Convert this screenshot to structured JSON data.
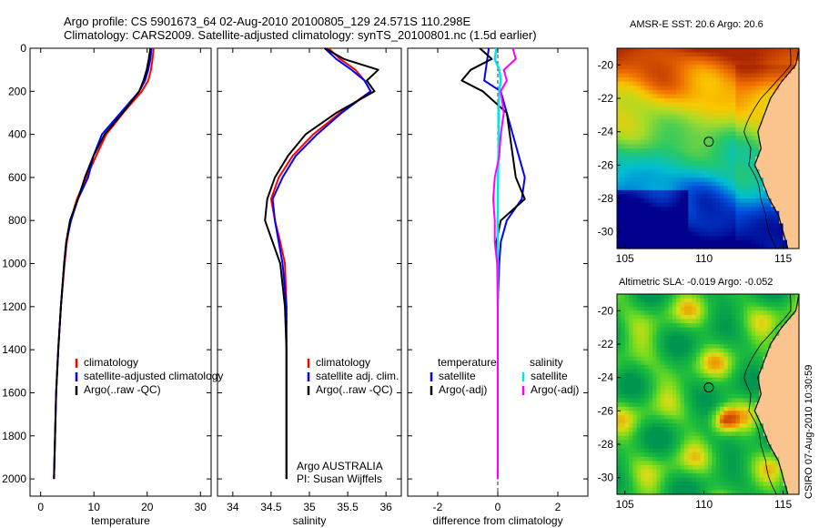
{
  "header": {
    "line1": "Argo profile: CS 5901673_64 02-Aug-2010 20100805_129 24.571S 110.298E",
    "line2": "Climatology: CARS2009. Satellite-adjusted climatology: synTS_20100801.nc (1.5d earlier)"
  },
  "side_label": "CSIRO 07-Aug-2010 10:30:59",
  "colors": {
    "clim": "#ff0000",
    "sat": "#0000ff",
    "argo": "#000000",
    "sal_sat": "#00e5e5",
    "sal_argo": "#ff00ff",
    "land": "#fbc48f",
    "coast": "#000000"
  },
  "chart_data": [
    {
      "type": "line",
      "id": "temperature",
      "xlabel": "temperature",
      "ylabel": "",
      "xlim": [
        -2,
        32
      ],
      "ylim": [
        2080,
        0
      ],
      "xticks": [
        0,
        10,
        20,
        30
      ],
      "yticks": [
        0,
        200,
        400,
        600,
        800,
        1000,
        1200,
        1400,
        1600,
        1800,
        2000
      ],
      "legend": [
        "climatology",
        "satellite-adjusted climatology",
        "Argo(..raw -QC)"
      ],
      "series": [
        {
          "name": "climatology",
          "color": "#ff0000",
          "depth": [
            0,
            50,
            100,
            150,
            200,
            300,
            400,
            500,
            600,
            700,
            800,
            900,
            1000,
            1200,
            1400,
            1600,
            1800,
            2000
          ],
          "values": [
            21.2,
            21.0,
            20.7,
            20.2,
            19.0,
            15.5,
            12.3,
            10.4,
            8.6,
            6.8,
            5.6,
            4.9,
            4.5,
            3.8,
            3.3,
            2.9,
            2.7,
            2.5
          ]
        },
        {
          "name": "satellite-adjusted climatology",
          "color": "#0000ff",
          "depth": [
            0,
            50,
            100,
            150,
            200,
            300,
            400,
            500,
            600,
            700,
            800,
            900,
            1000,
            1200,
            1400,
            1600,
            1800,
            2000
          ],
          "values": [
            20.8,
            20.6,
            20.2,
            19.6,
            18.5,
            15.0,
            11.5,
            9.9,
            8.9,
            7.0,
            5.7,
            4.8,
            4.4,
            3.8,
            3.3,
            2.9,
            2.7,
            2.5
          ]
        },
        {
          "name": "Argo(..raw -QC)",
          "color": "#000000",
          "depth": [
            0,
            50,
            100,
            150,
            200,
            300,
            400,
            500,
            600,
            700,
            800,
            900,
            1000,
            1200,
            1400,
            1600,
            1800,
            2000
          ],
          "values": [
            20.6,
            20.3,
            19.9,
            19.3,
            18.5,
            15.4,
            12.0,
            9.9,
            8.3,
            7.0,
            5.5,
            4.8,
            4.4,
            3.8,
            3.3,
            2.9,
            2.7,
            2.5
          ]
        }
      ]
    },
    {
      "type": "line",
      "id": "salinity",
      "xlabel": "salinity",
      "xlim": [
        33.8,
        36.2
      ],
      "ylim": [
        2080,
        0
      ],
      "xticks": [
        34,
        34.5,
        35,
        35.5,
        36
      ],
      "legend": [
        "climatology",
        "satellite adj. clim.",
        "Argo(..raw -QC)"
      ],
      "annotation": [
        "Argo AUSTRALIA",
        "PI: Susan Wijffels"
      ],
      "series": [
        {
          "name": "climatology",
          "color": "#ff0000",
          "depth": [
            0,
            50,
            100,
            150,
            200,
            300,
            400,
            500,
            600,
            700,
            800,
            900,
            1000,
            1200,
            1400,
            1600,
            1800,
            2000
          ],
          "values": [
            35.25,
            35.4,
            35.6,
            35.72,
            35.8,
            35.4,
            35.05,
            34.78,
            34.6,
            34.5,
            34.55,
            34.62,
            34.68,
            34.7,
            34.7,
            34.7,
            34.7,
            34.7
          ]
        },
        {
          "name": "satellite adj. clim.",
          "color": "#0000ff",
          "depth": [
            0,
            50,
            100,
            150,
            200,
            300,
            400,
            500,
            600,
            700,
            800,
            900,
            1000,
            1200,
            1400,
            1600,
            1800,
            2000
          ],
          "values": [
            35.2,
            35.35,
            35.55,
            35.72,
            35.8,
            35.42,
            35.1,
            34.82,
            34.65,
            34.52,
            34.55,
            34.6,
            34.65,
            34.7,
            34.7,
            34.7,
            34.7,
            34.7
          ]
        },
        {
          "name": "Argo(..raw -QC)",
          "color": "#000000",
          "depth": [
            0,
            50,
            100,
            150,
            200,
            300,
            400,
            500,
            600,
            700,
            800,
            900,
            1000,
            1200,
            1400,
            1600,
            1800,
            2000
          ],
          "values": [
            35.2,
            35.45,
            35.9,
            35.75,
            35.85,
            35.35,
            34.95,
            34.72,
            34.55,
            34.45,
            34.42,
            34.52,
            34.62,
            34.68,
            34.7,
            34.7,
            34.7,
            34.7
          ]
        }
      ]
    },
    {
      "type": "line",
      "id": "difference",
      "xlabel": "difference from climatology",
      "xlim": [
        -3,
        3
      ],
      "ylim": [
        2080,
        0
      ],
      "xticks": [
        -2,
        0,
        2
      ],
      "legend_temperature": {
        "heading": "temperature",
        "items": [
          "satellite",
          "Argo(-adj)"
        ]
      },
      "legend_salinity": {
        "heading": "salinity",
        "items": [
          "satellite",
          "Argo(-adj)"
        ]
      },
      "series": [
        {
          "name": "temperature satellite",
          "color": "#0000ff",
          "depth": [
            0,
            50,
            100,
            150,
            200,
            300,
            400,
            500,
            600,
            700,
            800,
            900,
            1000,
            1200,
            1400,
            1600,
            1800,
            2000
          ],
          "values": [
            -0.3,
            -0.35,
            -0.4,
            -0.45,
            0.1,
            0.3,
            0.5,
            0.7,
            0.9,
            0.8,
            0.3,
            0.1,
            0.05,
            0,
            0,
            0,
            0,
            0
          ]
        },
        {
          "name": "temperature Argo(-adj)",
          "color": "#000000",
          "depth": [
            0,
            50,
            100,
            150,
            200,
            300,
            400,
            500,
            600,
            700,
            800,
            900,
            1000,
            1200,
            1400,
            1600,
            1800,
            2000
          ],
          "values": [
            -0.6,
            -0.2,
            -0.9,
            -1.2,
            -0.5,
            0.3,
            0.4,
            0.5,
            0.6,
            0.9,
            0.1,
            -0.05,
            0,
            0,
            0,
            0,
            0,
            0
          ]
        },
        {
          "name": "salinity satellite",
          "color": "#00e5e5",
          "depth": [
            0,
            50,
            100,
            150,
            200,
            300,
            400,
            500,
            600,
            700,
            800,
            900,
            1000,
            1200,
            1400,
            1600,
            1800,
            2000
          ],
          "values": [
            -0.05,
            -0.1,
            0.05,
            0.1,
            0.05,
            0.02,
            0.03,
            0.02,
            0.01,
            0.0,
            0.0,
            0.0,
            0.0,
            0,
            0,
            0,
            0,
            0
          ]
        },
        {
          "name": "salinity Argo(-adj)",
          "color": "#ff00ff",
          "depth": [
            0,
            50,
            100,
            150,
            200,
            300,
            400,
            500,
            600,
            700,
            800,
            900,
            1000,
            1200,
            1400,
            1600,
            1800,
            2000
          ],
          "values": [
            0.5,
            0.6,
            0.2,
            0.3,
            0.1,
            0.2,
            0.1,
            0.05,
            -0.1,
            -0.15,
            -0.1,
            -0.1,
            -0.02,
            0,
            0,
            0,
            0,
            0
          ]
        }
      ]
    },
    {
      "type": "heatmap",
      "id": "sst_map",
      "title": "AMSR-E SST: 20.6 Argo: 20.6",
      "xlim": [
        104.5,
        116
      ],
      "ylim": [
        -31,
        -19
      ],
      "xticks": [
        105,
        110,
        115
      ],
      "yticks": [
        -20,
        -22,
        -24,
        -26,
        -28,
        -30
      ],
      "marker": {
        "lon": 110.3,
        "lat": -24.6
      }
    },
    {
      "type": "heatmap",
      "id": "sla_map",
      "title": "Altimetric SLA: -0.019 Argo: -0.052",
      "xlim": [
        104.5,
        116
      ],
      "ylim": [
        -31,
        -19
      ],
      "xticks": [
        105,
        110,
        115
      ],
      "yticks": [
        -20,
        -22,
        -24,
        -26,
        -28,
        -30
      ],
      "marker": {
        "lon": 110.3,
        "lat": -24.6
      }
    }
  ]
}
